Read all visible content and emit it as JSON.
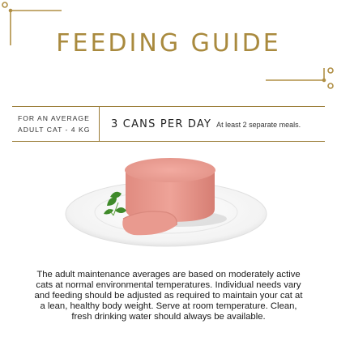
{
  "title": "FEEDING GUIDE",
  "guide": {
    "subject_line1": "FOR AN AVERAGE",
    "subject_line2": "ADULT CAT - 4 KG",
    "amount": "3 CANS PER DAY",
    "note": "At least 2 separate meals."
  },
  "description": "The adult maintenance averages are based on moderately active cats at normal environmental temperatures. Individual needs vary and feeding should be adjusted as required to maintain your cat at a lean, healthy body weight. Serve at room temperature. Clean, fresh drinking water should always be available.",
  "colors": {
    "gold": "#a98a3e",
    "text": "#1a1a1a",
    "pate": "#e8998e"
  },
  "icons": [
    "corner-flourish",
    "food-plate-photo"
  ]
}
